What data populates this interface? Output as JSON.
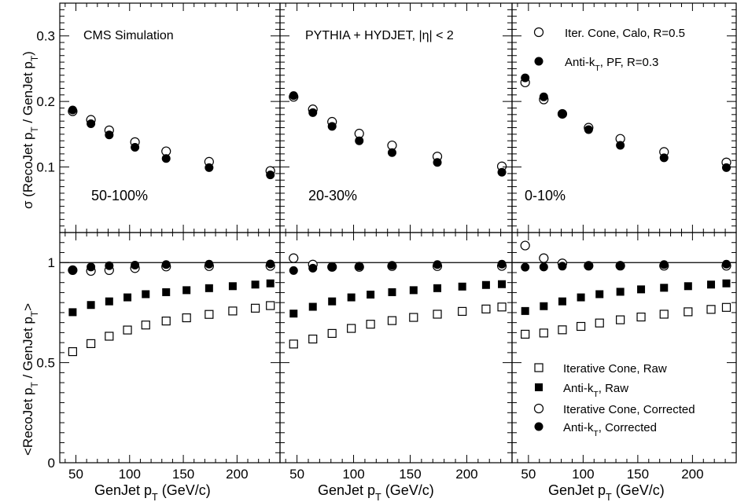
{
  "figure": {
    "annotations": {
      "cms": "CMS Simulation",
      "gen": "PYTHIA + HYDJET, |η| < 2"
    },
    "ylabel_top": "σ (RecoJet p_T / GenJet p_T)",
    "ylabel_bottom": "<RecoJet p_T / GenJet p_T>",
    "xlabel": "GenJet p_T (GeV/c)",
    "legend_top": [
      {
        "label": "Iter. Cone, Calo, R=0.5",
        "marker": "open-circle"
      },
      {
        "label": "Anti-k_T, PF, R=0.3",
        "marker": "filled-circle"
      }
    ],
    "legend_bottom": [
      {
        "label": "Iterative Cone, Raw",
        "marker": "open-square"
      },
      {
        "label": "Anti-k_T, Raw",
        "marker": "filled-square"
      },
      {
        "label": "Iterative Cone, Corrected",
        "marker": "open-circle"
      },
      {
        "label": "Anti-k_T, Corrected",
        "marker": "filled-circle"
      }
    ]
  },
  "chart_data": [
    {
      "type": "scatter",
      "panel": "resolution",
      "centrality": "50-100%",
      "xlim": [
        35,
        240
      ],
      "ylim": [
        0,
        0.35
      ],
      "yticks": [
        0.1,
        0.2,
        0.3
      ],
      "xticks": [
        50,
        100,
        150,
        200
      ],
      "series": [
        {
          "name": "Iter. Cone, Calo, R=0.5",
          "marker": "open-circle",
          "x": [
            47,
            64,
            81,
            105,
            134,
            174,
            231
          ],
          "y": [
            0.185,
            0.172,
            0.156,
            0.138,
            0.124,
            0.108,
            0.094
          ]
        },
        {
          "name": "Anti-k_T, PF, R=0.3",
          "marker": "filled-circle",
          "x": [
            47,
            64,
            81,
            105,
            134,
            174,
            231
          ],
          "y": [
            0.187,
            0.166,
            0.149,
            0.13,
            0.113,
            0.099,
            0.088
          ]
        }
      ]
    },
    {
      "type": "scatter",
      "panel": "resolution",
      "centrality": "20-30%",
      "xlim": [
        35,
        240
      ],
      "ylim": [
        0,
        0.35
      ],
      "yticks": [
        0.1,
        0.2,
        0.3
      ],
      "xticks": [
        50,
        100,
        150,
        200
      ],
      "series": [
        {
          "name": "Iter. Cone, Calo, R=0.5",
          "marker": "open-circle",
          "x": [
            47,
            64,
            81,
            105,
            134,
            174,
            231
          ],
          "y": [
            0.207,
            0.188,
            0.169,
            0.151,
            0.133,
            0.116,
            0.101
          ]
        },
        {
          "name": "Anti-k_T, PF, R=0.3",
          "marker": "filled-circle",
          "x": [
            47,
            64,
            81,
            105,
            134,
            174,
            231
          ],
          "y": [
            0.209,
            0.183,
            0.162,
            0.14,
            0.122,
            0.107,
            0.092
          ]
        }
      ]
    },
    {
      "type": "scatter",
      "panel": "resolution",
      "centrality": "0-10%",
      "xlim": [
        35,
        240
      ],
      "ylim": [
        0,
        0.35
      ],
      "yticks": [
        0.1,
        0.2,
        0.3
      ],
      "xticks": [
        50,
        100,
        150,
        200
      ],
      "series": [
        {
          "name": "Iter. Cone, Calo, R=0.5",
          "marker": "open-circle",
          "x": [
            47,
            64,
            81,
            105,
            134,
            174,
            231
          ],
          "y": [
            0.229,
            0.203,
            0.181,
            0.16,
            0.143,
            0.123,
            0.107
          ]
        },
        {
          "name": "Anti-k_T, PF, R=0.3",
          "marker": "filled-circle",
          "x": [
            47,
            64,
            81,
            105,
            134,
            174,
            231
          ],
          "y": [
            0.236,
            0.207,
            0.181,
            0.157,
            0.133,
            0.114,
            0.099
          ]
        }
      ]
    },
    {
      "type": "scatter",
      "panel": "scale",
      "xlim": [
        35,
        240
      ],
      "ylim": [
        0,
        1.15
      ],
      "yticks": [
        0,
        0.5,
        1
      ],
      "xticks": [
        50,
        100,
        150,
        200
      ],
      "reference_line": 1,
      "series": [
        {
          "name": "Iterative Cone, Raw",
          "marker": "open-square",
          "x": [
            47,
            64,
            81,
            98,
            115,
            134,
            153,
            174,
            196,
            217,
            231
          ],
          "y": [
            0.555,
            0.595,
            0.632,
            0.663,
            0.688,
            0.708,
            0.724,
            0.741,
            0.758,
            0.772,
            0.785
          ]
        },
        {
          "name": "Anti-k_T, Raw",
          "marker": "filled-square",
          "x": [
            47,
            64,
            81,
            98,
            115,
            134,
            153,
            174,
            196,
            217,
            231
          ],
          "y": [
            0.752,
            0.788,
            0.806,
            0.826,
            0.842,
            0.852,
            0.862,
            0.872,
            0.882,
            0.89,
            0.896
          ]
        },
        {
          "name": "Iterative Cone, Corrected",
          "marker": "open-circle",
          "x": [
            47,
            64,
            81,
            105,
            134,
            174,
            231
          ],
          "y": [
            0.962,
            0.958,
            0.962,
            0.972,
            0.98,
            0.982,
            0.983
          ]
        },
        {
          "name": "Anti-k_T, Corrected",
          "marker": "filled-circle",
          "x": [
            47,
            64,
            81,
            105,
            134,
            174,
            231
          ],
          "y": [
            0.962,
            0.978,
            0.984,
            0.987,
            0.99,
            0.992,
            0.993
          ]
        }
      ]
    },
    {
      "type": "scatter",
      "panel": "scale",
      "xlim": [
        35,
        240
      ],
      "ylim": [
        0,
        1.15
      ],
      "yticks": [
        0,
        0.5,
        1
      ],
      "xticks": [
        50,
        100,
        150,
        200
      ],
      "reference_line": 1,
      "series": [
        {
          "name": "Iterative Cone, Raw",
          "marker": "open-square",
          "x": [
            47,
            64,
            81,
            98,
            115,
            134,
            153,
            174,
            196,
            217,
            231
          ],
          "y": [
            0.593,
            0.618,
            0.646,
            0.671,
            0.692,
            0.71,
            0.726,
            0.742,
            0.756,
            0.768,
            0.778
          ]
        },
        {
          "name": "Anti-k_T, Raw",
          "marker": "filled-square",
          "x": [
            47,
            64,
            81,
            98,
            115,
            134,
            153,
            174,
            196,
            217,
            231
          ],
          "y": [
            0.745,
            0.779,
            0.806,
            0.826,
            0.84,
            0.852,
            0.862,
            0.872,
            0.88,
            0.888,
            0.892
          ]
        },
        {
          "name": "Iterative Cone, Corrected",
          "marker": "open-circle",
          "x": [
            47,
            64,
            81,
            105,
            134,
            174,
            231
          ],
          "y": [
            1.022,
            0.99,
            0.978,
            0.978,
            0.982,
            0.982,
            0.983
          ]
        },
        {
          "name": "Anti-k_T, Corrected",
          "marker": "filled-circle",
          "x": [
            47,
            64,
            81,
            105,
            134,
            174,
            231
          ],
          "y": [
            0.96,
            0.972,
            0.978,
            0.982,
            0.986,
            0.99,
            0.992
          ]
        }
      ]
    },
    {
      "type": "scatter",
      "panel": "scale",
      "xlim": [
        35,
        240
      ],
      "ylim": [
        0,
        1.15
      ],
      "yticks": [
        0,
        0.5,
        1
      ],
      "xticks": [
        50,
        100,
        150,
        200
      ],
      "reference_line": 1,
      "series": [
        {
          "name": "Iterative Cone, Raw",
          "marker": "open-square",
          "x": [
            47,
            64,
            81,
            98,
            115,
            134,
            153,
            174,
            196,
            217,
            231
          ],
          "y": [
            0.642,
            0.648,
            0.664,
            0.681,
            0.698,
            0.714,
            0.728,
            0.742,
            0.754,
            0.766,
            0.776
          ]
        },
        {
          "name": "Anti-k_T, Raw",
          "marker": "filled-square",
          "x": [
            47,
            64,
            81,
            98,
            115,
            134,
            153,
            174,
            196,
            217,
            231
          ],
          "y": [
            0.758,
            0.782,
            0.806,
            0.826,
            0.842,
            0.854,
            0.866,
            0.874,
            0.882,
            0.89,
            0.896
          ]
        },
        {
          "name": "Iterative Cone, Corrected",
          "marker": "open-circle",
          "x": [
            47,
            64,
            81,
            105,
            134,
            174,
            231
          ],
          "y": [
            1.085,
            1.022,
            0.996,
            0.984,
            0.984,
            0.984,
            0.984
          ]
        },
        {
          "name": "Anti-k_T, Corrected",
          "marker": "filled-circle",
          "x": [
            47,
            64,
            81,
            105,
            134,
            174,
            231
          ],
          "y": [
            0.977,
            0.978,
            0.982,
            0.984,
            0.986,
            0.99,
            0.992
          ]
        }
      ]
    }
  ]
}
